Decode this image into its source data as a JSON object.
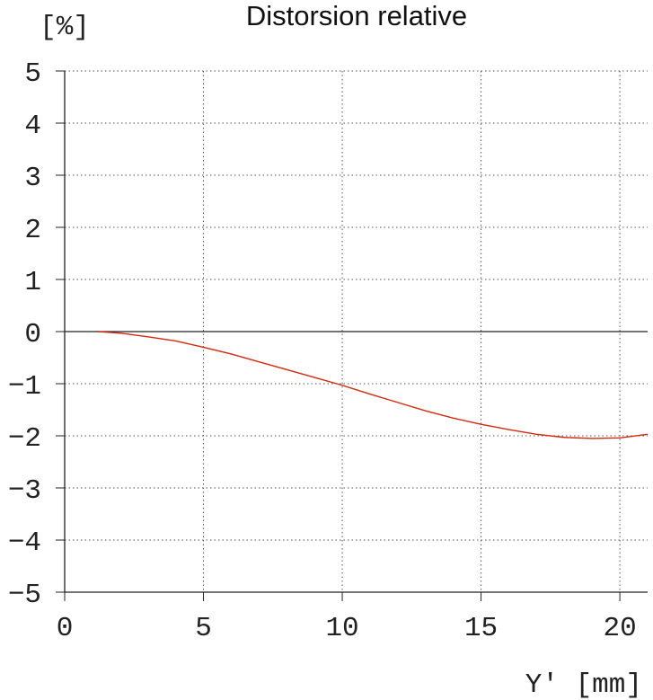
{
  "chart_data": {
    "type": "line",
    "title": "Distorsion relative",
    "y_label": "[%]",
    "x_label": "Y' [mm]",
    "x": [
      1.2,
      2,
      3,
      4,
      5,
      6,
      7,
      8,
      9,
      10,
      11,
      12,
      13,
      14,
      15,
      16,
      17,
      18,
      19,
      20,
      21
    ],
    "series": [
      {
        "color": "#d02a10",
        "values": [
          0,
          -0.03,
          -0.1,
          -0.18,
          -0.3,
          -0.43,
          -0.58,
          -0.73,
          -0.88,
          -1.03,
          -1.2,
          -1.36,
          -1.52,
          -1.66,
          -1.78,
          -1.88,
          -1.97,
          -2.03,
          -2.05,
          -2.04,
          -1.97
        ]
      }
    ],
    "xlim": [
      0,
      21
    ],
    "ylim": [
      -5,
      5
    ],
    "xticks": [
      0,
      5,
      10,
      15,
      20
    ],
    "yticks": [
      {
        "value": -5,
        "label": "−5"
      },
      {
        "value": -4,
        "label": "−4"
      },
      {
        "value": -3,
        "label": "−3"
      },
      {
        "value": -2,
        "label": "−2"
      },
      {
        "value": -1,
        "label": "−1"
      },
      0,
      1,
      2,
      3,
      4,
      5
    ],
    "grid": true
  }
}
